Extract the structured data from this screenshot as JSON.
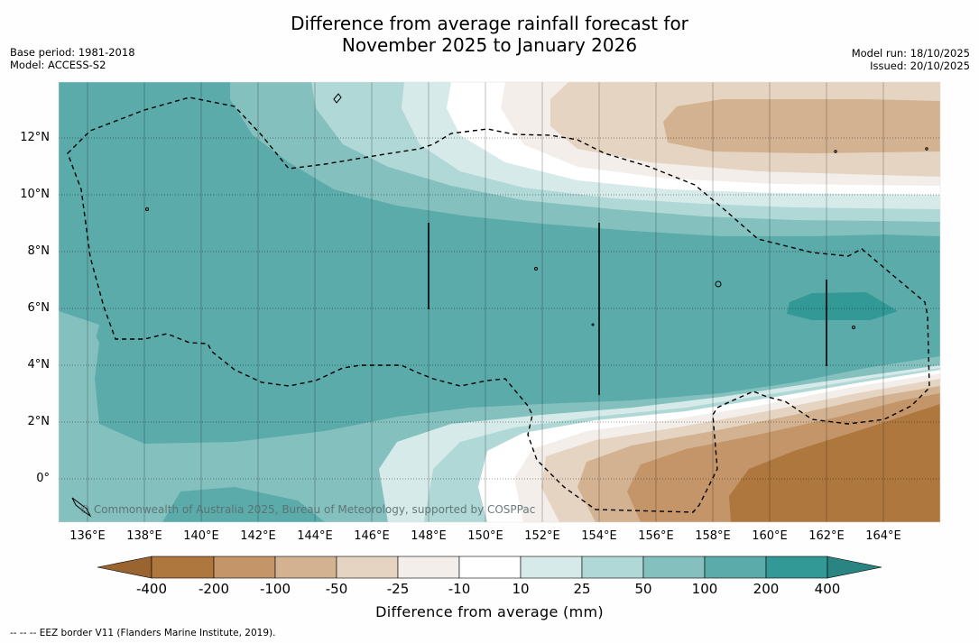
{
  "title": {
    "line1": "Difference from average rainfall forecast for",
    "line2": "November 2025 to January 2026"
  },
  "meta": {
    "base_period": "Base period: 1981-2018",
    "model": "Model: ACCESS-S2",
    "model_run": "Model run: 18/10/2025",
    "issued": "Issued: 20/10/2025"
  },
  "credit": "© Commonwealth of Australia 2025, Bureau of Meteorology, supported by COSPPac",
  "axes": {
    "lat_labels": [
      "12°N",
      "10°N",
      "8°N",
      "6°N",
      "4°N",
      "2°N",
      "0°"
    ],
    "lon_labels": [
      "136°E",
      "138°E",
      "140°E",
      "142°E",
      "144°E",
      "146°E",
      "148°E",
      "150°E",
      "152°E",
      "154°E",
      "156°E",
      "158°E",
      "160°E",
      "162°E",
      "164°E"
    ]
  },
  "colorbar": {
    "title": "Difference from average (mm)",
    "ticks": [
      "-400",
      "-200",
      "-100",
      "-50",
      "-25",
      "-10",
      "10",
      "25",
      "50",
      "100",
      "200",
      "400"
    ],
    "colors": {
      "below_min": "#9a6430",
      "neg_400_200": "#ae773e",
      "neg_200_100": "#c39568",
      "neg_100_50": "#d3b291",
      "neg_50_25": "#e6d4c2",
      "neg_25_10": "#f3eee9",
      "neutral": "#ffffff",
      "pos_10_25": "#d6eae9",
      "pos_25_50": "#b0d8d6",
      "pos_50_100": "#84c0be",
      "pos_100_200": "#5babab",
      "pos_200_400": "#339996",
      "above_max": "#2a8481"
    }
  },
  "footer": "--  --  -- EEZ border V11 (Flanders Marine Institute, 2019)."
}
